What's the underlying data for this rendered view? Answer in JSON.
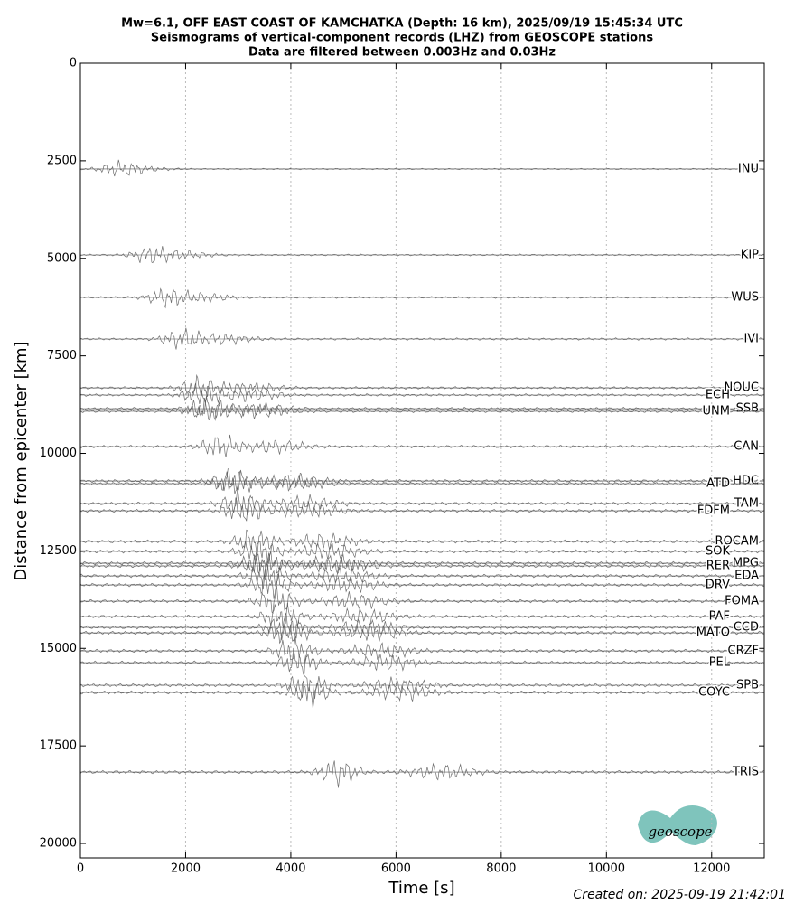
{
  "chart_data": {
    "type": "record-section",
    "title": [
      "Mw=6.1, OFF EAST COAST OF KAMCHATKA (Depth: 16 km), 2025/09/19 15:45:34 UTC",
      "Seismograms of vertical-component records (LHZ) from GEOSCOPE stations",
      "Data are filtered between 0.003Hz and 0.03Hz"
    ],
    "x_label": "Time [s]",
    "y_label": "Distance from epicenter [km]",
    "xlim": [
      0,
      13000
    ],
    "xticks": [
      0,
      2000,
      4000,
      6000,
      8000,
      10000,
      12000
    ],
    "ylim": [
      0,
      20370
    ],
    "yticks": [
      0,
      2500,
      5000,
      7500,
      10000,
      12500,
      15000,
      17500,
      20000
    ],
    "y_inverted": true,
    "grid": "x",
    "color": "#555555",
    "stations": [
      "INU",
      "KIP",
      "WUS",
      "IVI",
      "NOUC",
      "ECH",
      "SSB",
      "UNM",
      "CAN",
      "HDC",
      "ATD",
      "TAM",
      "FDFM",
      "ROCAM",
      "SOK",
      "MPG",
      "RER",
      "EDA",
      "DRV",
      "FOMA",
      "PAF",
      "CCD",
      "MATO",
      "CRZF",
      "PEL",
      "SPB",
      "COYC",
      "TRIS"
    ],
    "distances": [
      2711,
      4913,
      6002,
      7068,
      8320,
      8505,
      8853,
      8922,
      9826,
      10707,
      10776,
      11286,
      11472,
      12259,
      12514,
      12816,
      12885,
      13140,
      13372,
      13789,
      14183,
      14461,
      14600,
      15064,
      15365,
      15944,
      16130,
      18169
    ],
    "footer": "Created on: 2025-09-19 21:42:01",
    "logo": "geoscope"
  }
}
